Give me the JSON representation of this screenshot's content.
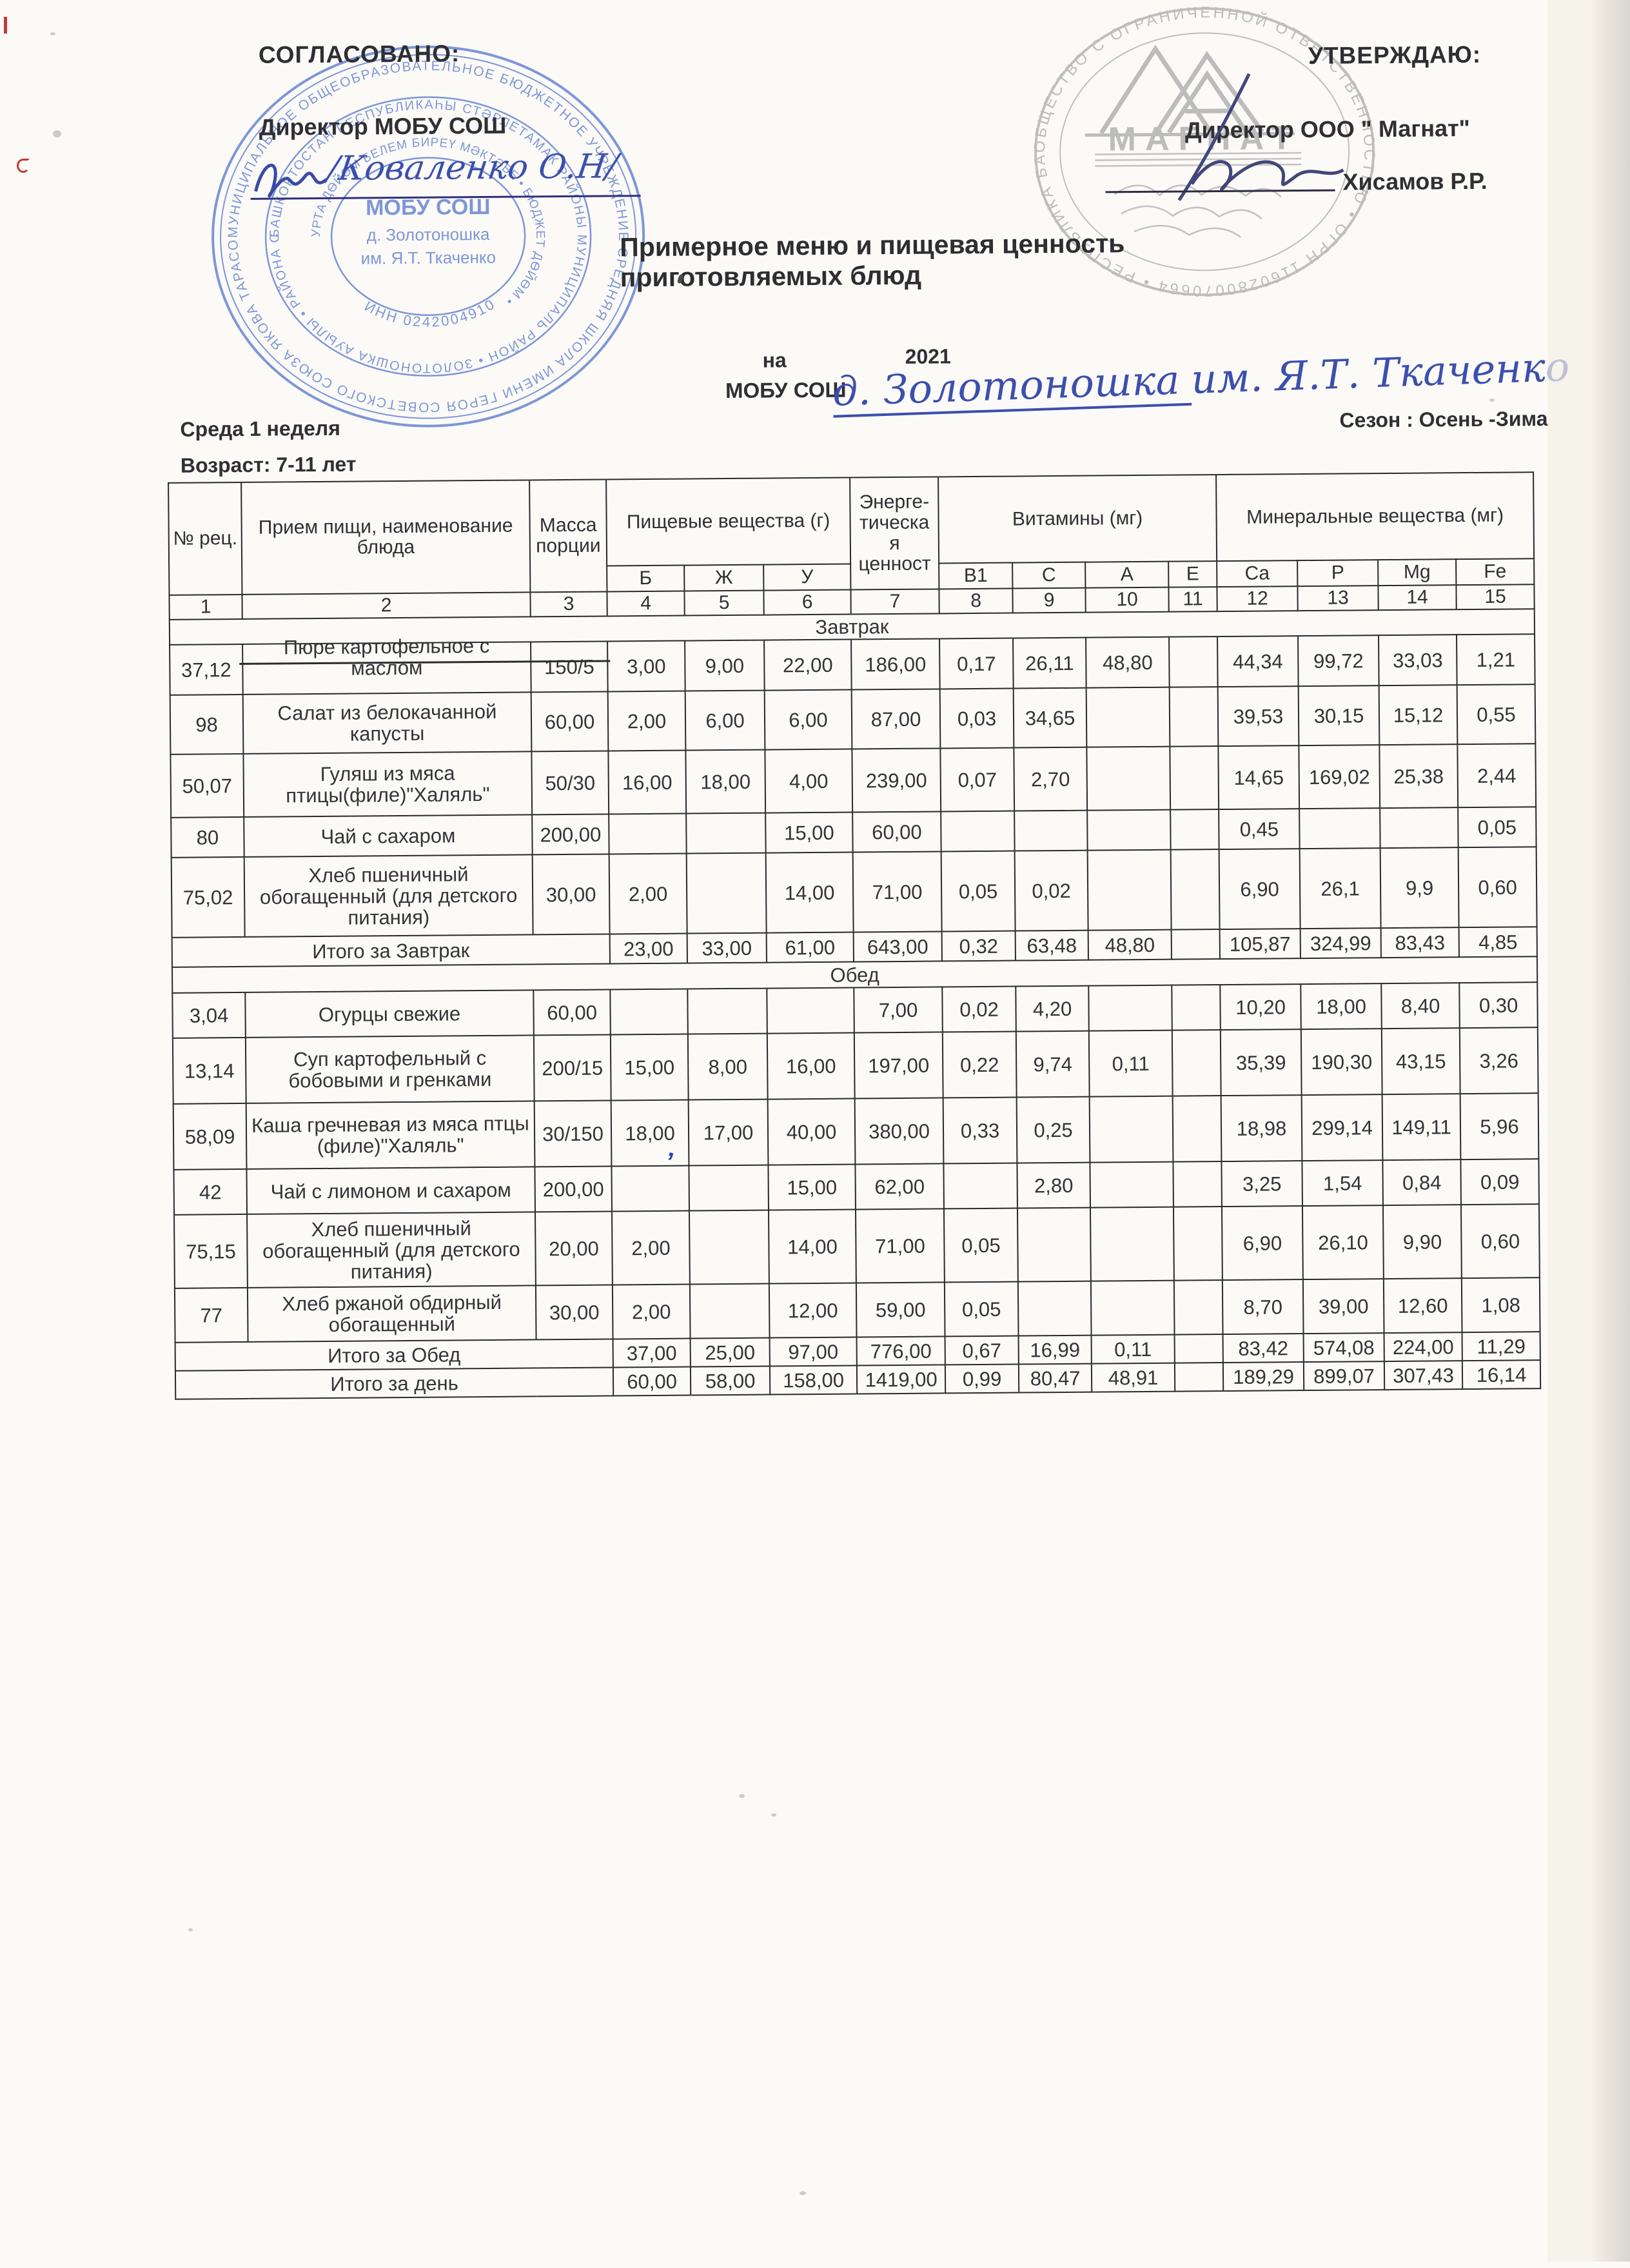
{
  "doc": {
    "agreed": {
      "label": "СОГЛАСОВАНО:",
      "role": "Директор МОБУ СОШ",
      "signature": "/Коваленко О.Н/"
    },
    "approved": {
      "label": "УТВЕРЖДАЮ:",
      "role": "Директор ООО \" Магнат\"",
      "name": "Хисамов Р.Р."
    },
    "title": "Примерное меню и пищевая ценность приготовляемых блюд",
    "year_prefix": "на",
    "year": "2021",
    "school_prefix": "МОБУ СОШ",
    "school_hand_1": "д. Золотоношка",
    "school_hand_2": "им. Я.Т. Ткаченко",
    "day_week": "Среда 1 неделя",
    "age": "Возраст: 7-11 лет",
    "season": "Сезон : Осень -Зима"
  },
  "stamps": {
    "school": {
      "ring_outer": "МУНИЦИПАЛЬНОЕ ОБЩЕОБРАЗОВАТЕЛЬНОЕ БЮДЖЕТНОЕ УЧРЕЖДЕНИЕ СРЕДНЯЯ ШКОЛА ИМЕНИ ГЕРОЯ СОВЕТСКОГО СОЮЗА ЯКОВА ТАРАСОВИЧА ТКАЧЕНКО Д. ЗОЛОТОНОШКА МУНИЦИПАЛЬНОГО РАЙОНА ",
      "ring_middle": "БАШКОРТОСТАН РЕСПУБЛИКАҺЫ СТӘРЛЕТАМАК РАЙОНЫ МУНИЦИПАЛЬ РАЙОН • ЗОЛОТОНОШКА АУЫЛЫ • РАЙОНА СТЕРЛИТАМАКСКИЙ ",
      "ring_inner": "УРТА ДӨЙӨМ БЕЛЕМ БИРЕҮ МӘКТӘБЕ • БЮДЖЕТ ДӨЙӨМ • ",
      "center_1": "МОБУ СОШ",
      "center_2": "д. Золотоношка",
      "center_3": "им. Я.Т. Ткаченко",
      "inn": "ИНН 0242004910"
    },
    "magnat": {
      "ring": "ОБЩЕСТВО С ОГРАНИЧЕННОЙ ОТВЕТСТВЕННОСТЬЮ • ОГРН 1160280070664 • РЕСПУБЛИКА БАШКОРТОСТАН ",
      "logo": "МАГНАТ"
    }
  },
  "table": {
    "headers": {
      "num": "№ рец.",
      "dish": "Прием пищи, наименование блюда",
      "mass": "Масса порции",
      "nutrients": "Пищевые вещества (г)",
      "b": "Б",
      "zh": "Ж",
      "u": "У",
      "energy": "Энерге-\nтическа\nя\nценност",
      "vitamins": "Витамины (мг)",
      "v1": "В1",
      "c": "С",
      "a": "А",
      "e": "Е",
      "minerals": "Минеральные вещества (мг)",
      "ca": "Ca",
      "p": "P",
      "mg": "Mg",
      "fe": "Fe"
    },
    "col_numbers": [
      "1",
      "2",
      "3",
      "4",
      "5",
      "6",
      "7",
      "8",
      "9",
      "10",
      "11",
      "12",
      "13",
      "14",
      "15"
    ],
    "sections": [
      {
        "name": "Завтрак",
        "rows": [
          {
            "cells": [
              "37,12",
              "Пюре картофельное с маслом",
              "150/5",
              "3,00",
              "9,00",
              "22,00",
              "186,00",
              "0,17",
              "26,11",
              "48,80",
              "",
              "44,34",
              "99,72",
              "33,03",
              "1,21"
            ]
          },
          {
            "cells": [
              "98",
              "Салат из белокачанной капусты",
              "60,00",
              "2,00",
              "6,00",
              "6,00",
              "87,00",
              "0,03",
              "34,65",
              "",
              "",
              "39,53",
              "30,15",
              "15,12",
              "0,55"
            ]
          },
          {
            "cells": [
              "50,07",
              "Гуляш из мяса птицы(филе)\"Халяль\"",
              "50/30",
              "16,00",
              "18,00",
              "4,00",
              "239,00",
              "0,07",
              "2,70",
              "",
              "",
              "14,65",
              "169,02",
              "25,38",
              "2,44"
            ]
          },
          {
            "cells": [
              "80",
              "Чай с сахаром",
              "200,00",
              "",
              "",
              "15,00",
              "60,00",
              "",
              "",
              "",
              "",
              "0,45",
              "",
              "",
              "0,05"
            ]
          },
          {
            "cells": [
              "75,02",
              "Хлеб пшеничный обогащенный (для детского питания)",
              "30,00",
              "2,00",
              "",
              "14,00",
              "71,00",
              "0,05",
              "0,02",
              "",
              "",
              "6,90",
              "26,1",
              "9,9",
              "0,60"
            ]
          }
        ],
        "total_label": "Итого за Завтрак",
        "total_cells": [
          "23,00",
          "33,00",
          "61,00",
          "643,00",
          "0,32",
          "63,48",
          "48,80",
          "",
          "105,87",
          "324,99",
          "83,43",
          "4,85"
        ]
      },
      {
        "name": "Обед",
        "rows": [
          {
            "cells": [
              "3,04",
              "Огурцы свежие",
              "60,00",
              "",
              "",
              "",
              "7,00",
              "0,02",
              "4,20",
              "",
              "",
              "10,20",
              "18,00",
              "8,40",
              "0,30"
            ]
          },
          {
            "cells": [
              "13,14",
              "Суп картофельный с бобовыми и гренками",
              "200/15",
              "15,00",
              "8,00",
              "16,00",
              "197,00",
              "0,22",
              "9,74",
              "0,11",
              "",
              "35,39",
              "190,30",
              "43,15",
              "3,26"
            ]
          },
          {
            "cells": [
              "58,09",
              "Каша гречневая из мяса птцы (филе)\"Халяль\"",
              "30/150",
              "18,00",
              "17,00",
              "40,00",
              "380,00",
              "0,33",
              "0,25",
              "",
              "",
              "18,98",
              "299,14",
              "149,11",
              "5,96"
            ]
          },
          {
            "cells": [
              "42",
              "Чай с лимоном и сахаром",
              "200,00",
              "",
              "",
              "15,00",
              "62,00",
              "",
              "2,80",
              "",
              "",
              "3,25",
              "1,54",
              "0,84",
              "0,09"
            ]
          },
          {
            "cells": [
              "75,15",
              "Хлеб пшеничный обогащенный (для детского питания)",
              "20,00",
              "2,00",
              "",
              "14,00",
              "71,00",
              "0,05",
              "",
              "",
              "",
              "6,90",
              "26,10",
              "9,90",
              "0,60"
            ]
          },
          {
            "cells": [
              "77",
              "Хлеб ржаной обдирный обогащенный",
              "30,00",
              "2,00",
              "",
              "12,00",
              "59,00",
              "0,05",
              "",
              "",
              "",
              "8,70",
              "39,00",
              "12,60",
              "1,08"
            ]
          }
        ],
        "total_label": "Итого за Обед",
        "total_cells": [
          "37,00",
          "25,00",
          "97,00",
          "776,00",
          "0,67",
          "16,99",
          "0,11",
          "",
          "83,42",
          "574,08",
          "224,00",
          "11,29"
        ]
      }
    ],
    "day_total_label": "Итого за день",
    "day_total_cells": [
      "60,00",
      "58,00",
      "158,00",
      "1419,00",
      "0,99",
      "80,47",
      "48,91",
      "",
      "189,29",
      "899,07",
      "307,43",
      "16,14"
    ]
  }
}
